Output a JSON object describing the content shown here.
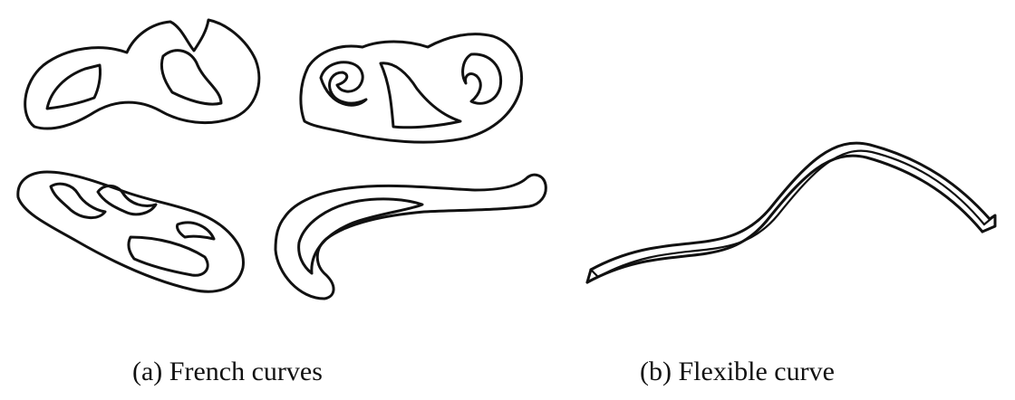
{
  "captions": {
    "a": "(a) French curves",
    "b": "(b) Flexible curve"
  },
  "colors": {
    "stroke": "#111111",
    "background": "#ffffff"
  }
}
